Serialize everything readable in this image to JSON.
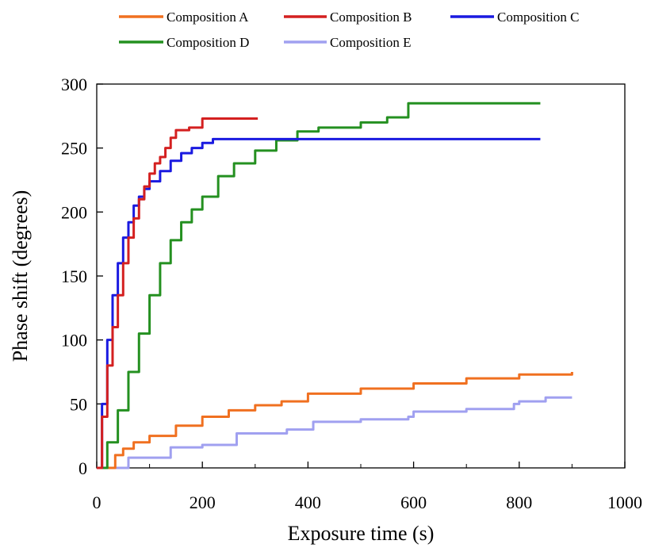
{
  "colors": {
    "composition_a": "#f07020",
    "composition_b": "#d42020",
    "composition_c": "#1a1ae0",
    "composition_d": "#249020",
    "composition_e": "#a0a0f0"
  },
  "chart_data": {
    "type": "line",
    "title": "",
    "xlabel": "Exposure time (s)",
    "ylabel": "Phase shift (degrees)",
    "xlim": [
      0,
      1000
    ],
    "ylim": [
      0,
      300
    ],
    "xticks": [
      0,
      200,
      400,
      600,
      800,
      1000
    ],
    "yticks": [
      0,
      50,
      100,
      150,
      200,
      250,
      300
    ],
    "grid": false,
    "legend_position": "top",
    "series": [
      {
        "name": "Composition A",
        "color": "#f07020",
        "x": [
          0,
          30,
          35,
          50,
          70,
          100,
          150,
          200,
          250,
          300,
          350,
          400,
          500,
          600,
          700,
          800,
          900
        ],
        "y": [
          0,
          0,
          10,
          15,
          20,
          25,
          33,
          40,
          45,
          49,
          52,
          58,
          62,
          66,
          70,
          73,
          75
        ]
      },
      {
        "name": "Composition B",
        "color": "#d42020",
        "x": [
          0,
          10,
          20,
          30,
          40,
          50,
          60,
          70,
          80,
          90,
          100,
          110,
          120,
          130,
          140,
          150,
          175,
          200,
          250,
          305
        ],
        "y": [
          0,
          40,
          80,
          110,
          135,
          160,
          180,
          195,
          210,
          220,
          230,
          238,
          243,
          250,
          258,
          264,
          266,
          273,
          273,
          273
        ]
      },
      {
        "name": "Composition C",
        "color": "#1a1ae0",
        "x": [
          0,
          10,
          20,
          30,
          40,
          50,
          60,
          70,
          80,
          90,
          100,
          120,
          140,
          160,
          180,
          200,
          220,
          300,
          840
        ],
        "y": [
          0,
          50,
          100,
          135,
          160,
          180,
          192,
          205,
          212,
          218,
          224,
          232,
          240,
          246,
          250,
          254,
          257,
          257,
          257
        ]
      },
      {
        "name": "Composition D",
        "color": "#249020",
        "x": [
          0,
          20,
          40,
          60,
          80,
          100,
          120,
          140,
          160,
          180,
          200,
          230,
          260,
          300,
          340,
          380,
          420,
          500,
          550,
          590,
          640,
          840
        ],
        "y": [
          0,
          20,
          45,
          75,
          105,
          135,
          160,
          178,
          192,
          202,
          212,
          228,
          238,
          248,
          256,
          263,
          266,
          270,
          274,
          285,
          285,
          285
        ]
      },
      {
        "name": "Composition E",
        "color": "#a0a0f0",
        "x": [
          0,
          55,
          60,
          130,
          140,
          200,
          260,
          265,
          360,
          410,
          500,
          590,
          600,
          700,
          790,
          800,
          850,
          900
        ],
        "y": [
          0,
          0,
          8,
          8,
          16,
          18,
          18,
          27,
          30,
          36,
          38,
          40,
          44,
          46,
          50,
          52,
          55,
          55
        ]
      }
    ]
  }
}
